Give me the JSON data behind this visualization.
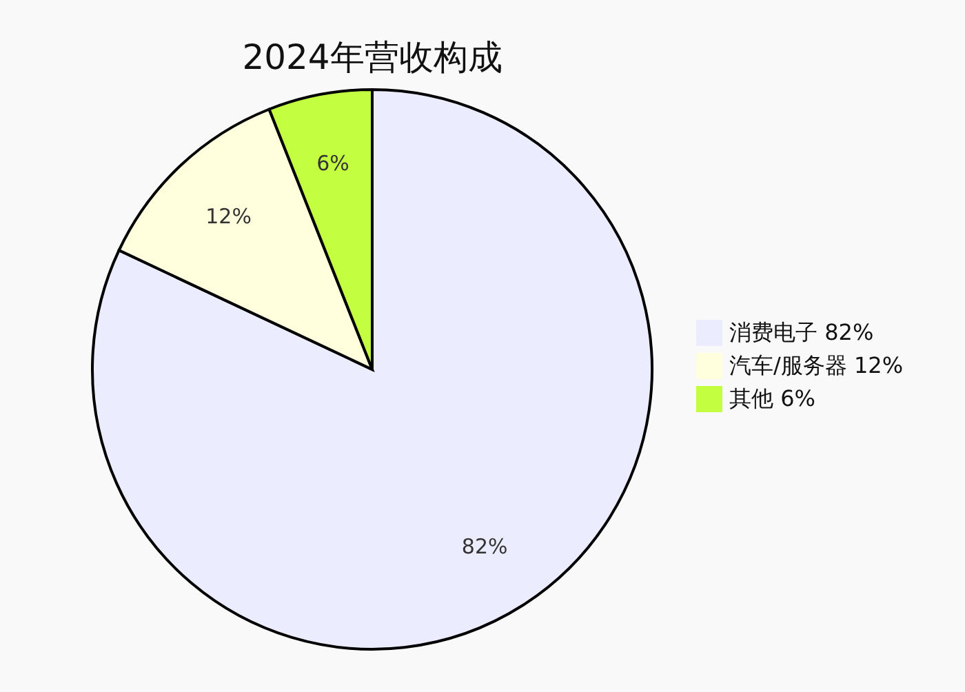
{
  "chart_data": {
    "type": "pie",
    "title": "2024年营收构成",
    "categories": [
      "消费电子 82%",
      "汽车/服务器 12%",
      "其他 6%"
    ],
    "values": [
      82,
      12,
      6
    ],
    "colors": [
      "#ececff",
      "#ffffde",
      "#c3ff40"
    ],
    "value_labels": [
      "82%",
      "12%",
      "6%"
    ],
    "legend": "right"
  }
}
